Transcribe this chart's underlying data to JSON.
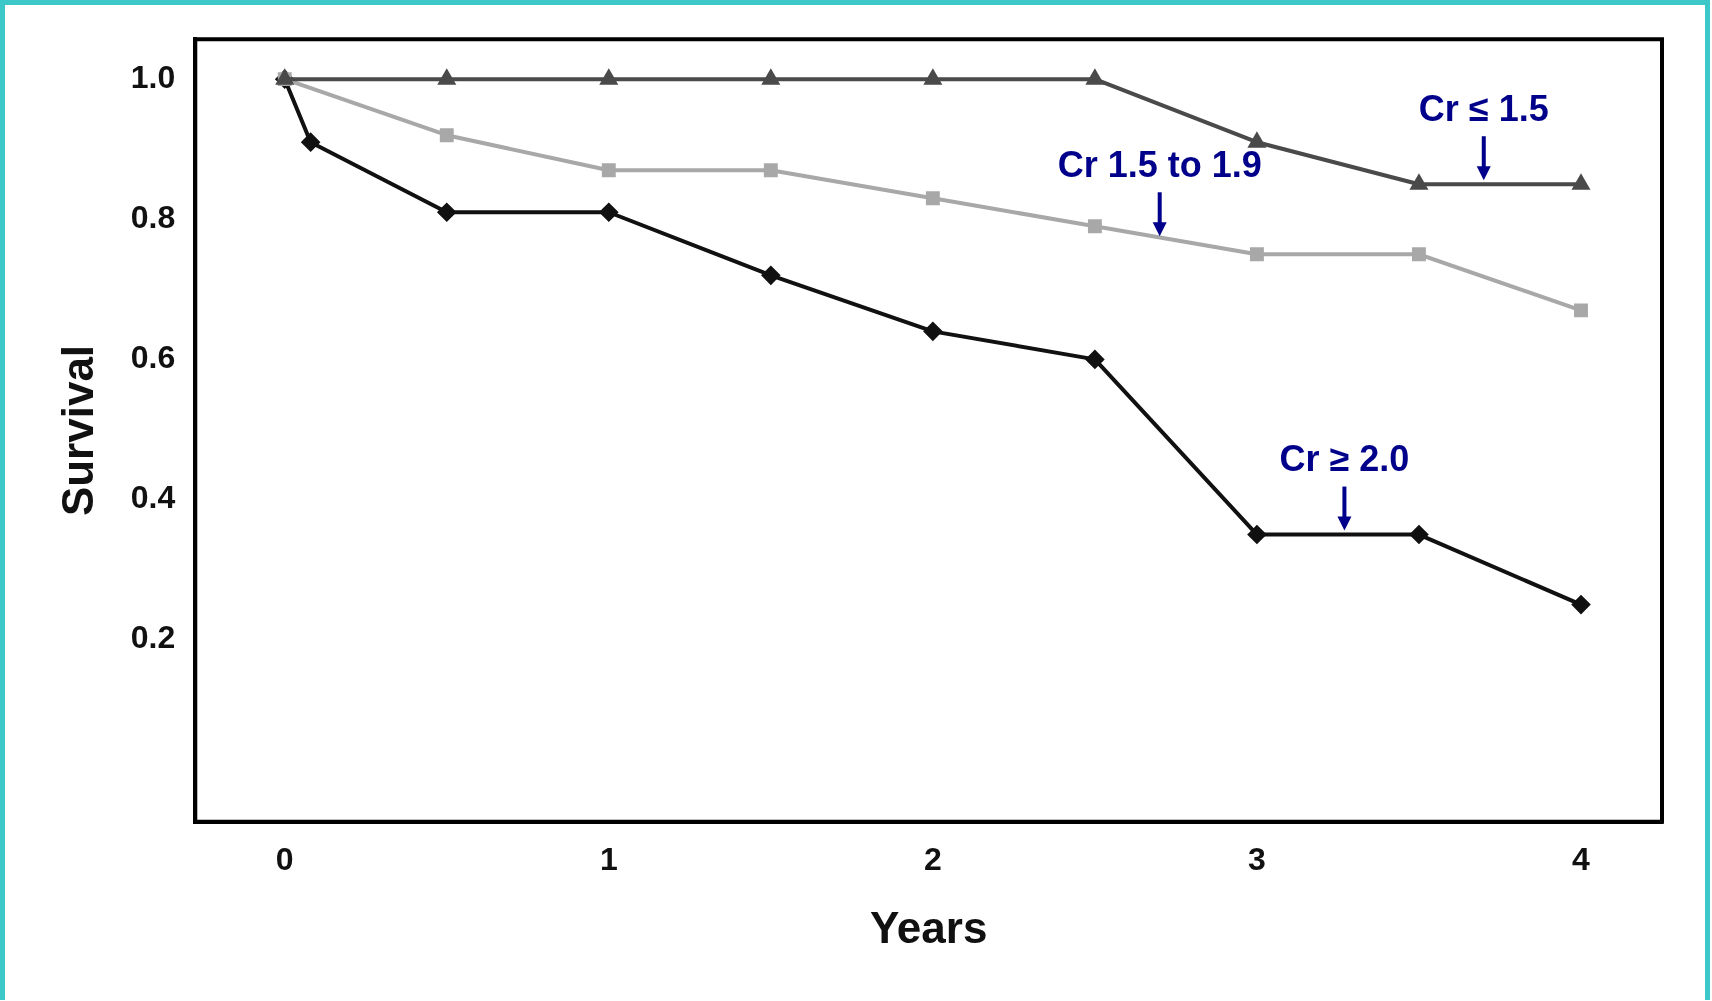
{
  "chart_data": {
    "type": "line",
    "xlabel": "Years",
    "ylabel": "Survival",
    "xlim": [
      -0.276,
      4.25
    ],
    "ylim": [
      -0.06,
      1.057
    ],
    "xticks": [
      0,
      1,
      2,
      3,
      4
    ],
    "yticks": [
      {
        "value": 0.2,
        "label": "0.2"
      },
      {
        "value": 0.4,
        "label": "0.4"
      },
      {
        "value": 0.6,
        "label": "0.6"
      },
      {
        "value": 0.8,
        "label": "0.8"
      },
      {
        "value": 1.0,
        "label": "1.0"
      }
    ],
    "grid": false,
    "legend": false,
    "line_style": "solid",
    "series": [
      {
        "color": "#4a4a4a",
        "marker": "triangle",
        "x": [
          0,
          0.5,
          1,
          1.5,
          2,
          2.5,
          3,
          3.5,
          4
        ],
        "values": [
          1,
          1,
          1,
          1,
          1,
          1,
          0.91,
          0.85,
          0.85
        ]
      },
      {
        "color": "#a8a8a8",
        "marker": "square",
        "x": [
          0,
          0.5,
          1,
          1.5,
          2,
          2.5,
          3,
          3.5,
          4
        ],
        "values": [
          1,
          0.92,
          0.87,
          0.87,
          0.83,
          0.79,
          0.75,
          0.75,
          0.67
        ]
      },
      {
        "color": "#111111",
        "marker": "diamond",
        "x": [
          0,
          0.08,
          0.5,
          1,
          1.5,
          2,
          2.5,
          3,
          3.5,
          4
        ],
        "values": [
          1,
          0.91,
          0.81,
          0.81,
          0.72,
          0.64,
          0.6,
          0.35,
          0.35,
          0.25
        ]
      }
    ],
    "annotations": [
      {
        "text": "Cr ≤ 1.5",
        "x": 3.7,
        "y": 0.85
      },
      {
        "text": "Cr 1.5 to 1.9",
        "x": 2.7,
        "y": 0.77
      },
      {
        "text": "Cr ≥ 2.0",
        "x": 3.27,
        "y": 0.35
      }
    ]
  }
}
